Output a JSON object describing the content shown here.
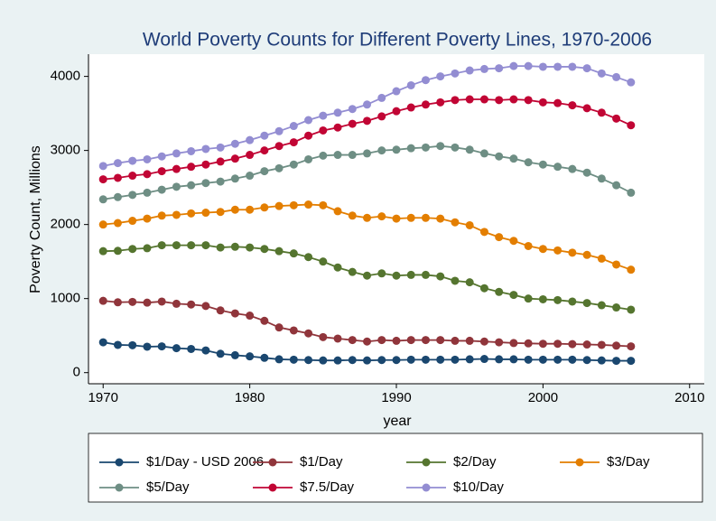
{
  "chart_data": {
    "type": "line",
    "title": "World Poverty Counts for Different Poverty Lines, 1970-2006",
    "x_label": "year",
    "y_label": "Poverty Count, Millions",
    "x": [
      1970,
      1971,
      1972,
      1973,
      1974,
      1975,
      1976,
      1977,
      1978,
      1979,
      1980,
      1981,
      1982,
      1983,
      1984,
      1985,
      1986,
      1987,
      1988,
      1989,
      1990,
      1991,
      1992,
      1993,
      1994,
      1995,
      1996,
      1997,
      1998,
      1999,
      2000,
      2001,
      2002,
      2003,
      2004,
      2005,
      2006
    ],
    "xlim": [
      1969,
      2011
    ],
    "xticks": [
      1970,
      1980,
      1990,
      2000,
      2010
    ],
    "ylim": [
      -150,
      4300
    ],
    "yticks": [
      0,
      1000,
      2000,
      3000,
      4000
    ],
    "grid": false,
    "legend_position": "bottom",
    "series": [
      {
        "name": "$1/Day - USD 2006",
        "color": "#1a476f",
        "values": [
          410,
          375,
          370,
          350,
          355,
          330,
          320,
          300,
          255,
          235,
          220,
          200,
          180,
          175,
          170,
          165,
          165,
          170,
          165,
          170,
          170,
          175,
          175,
          175,
          175,
          180,
          185,
          180,
          180,
          175,
          175,
          175,
          175,
          170,
          165,
          160,
          160
        ]
      },
      {
        "name": "$1/Day",
        "color": "#90353b",
        "values": [
          970,
          950,
          955,
          945,
          960,
          930,
          920,
          900,
          840,
          800,
          770,
          700,
          610,
          570,
          530,
          480,
          460,
          440,
          420,
          440,
          430,
          440,
          440,
          440,
          430,
          430,
          420,
          410,
          400,
          395,
          390,
          390,
          385,
          380,
          375,
          365,
          355
        ]
      },
      {
        "name": "$2/Day",
        "color": "#55752f",
        "values": [
          1640,
          1645,
          1670,
          1680,
          1720,
          1720,
          1720,
          1720,
          1690,
          1700,
          1690,
          1670,
          1640,
          1610,
          1560,
          1500,
          1420,
          1360,
          1310,
          1340,
          1310,
          1320,
          1320,
          1300,
          1240,
          1220,
          1140,
          1090,
          1050,
          1000,
          990,
          980,
          960,
          940,
          910,
          880,
          850
        ]
      },
      {
        "name": "$3/Day",
        "color": "#e37e00",
        "values": [
          2000,
          2020,
          2050,
          2080,
          2120,
          2130,
          2150,
          2160,
          2170,
          2200,
          2200,
          2230,
          2250,
          2260,
          2270,
          2260,
          2180,
          2120,
          2090,
          2110,
          2080,
          2090,
          2090,
          2080,
          2030,
          1990,
          1900,
          1830,
          1780,
          1710,
          1670,
          1650,
          1620,
          1590,
          1540,
          1460,
          1390
        ]
      },
      {
        "name": "$5/Day",
        "color": "#6e8e84",
        "values": [
          2340,
          2370,
          2400,
          2430,
          2470,
          2510,
          2530,
          2560,
          2580,
          2620,
          2660,
          2720,
          2760,
          2810,
          2880,
          2930,
          2940,
          2940,
          2960,
          3000,
          3010,
          3030,
          3040,
          3060,
          3040,
          3010,
          2960,
          2920,
          2890,
          2840,
          2810,
          2780,
          2750,
          2700,
          2620,
          2530,
          2430
        ]
      },
      {
        "name": "$7.5/Day",
        "color": "#c10534",
        "values": [
          2610,
          2630,
          2660,
          2680,
          2720,
          2750,
          2780,
          2810,
          2850,
          2890,
          2940,
          3000,
          3060,
          3110,
          3200,
          3270,
          3310,
          3360,
          3400,
          3460,
          3530,
          3580,
          3620,
          3650,
          3680,
          3690,
          3690,
          3680,
          3690,
          3680,
          3650,
          3640,
          3610,
          3570,
          3510,
          3430,
          3340
        ]
      },
      {
        "name": "$10/Day",
        "color": "#938dd2",
        "values": [
          2790,
          2830,
          2860,
          2880,
          2920,
          2960,
          2990,
          3020,
          3040,
          3090,
          3140,
          3200,
          3260,
          3330,
          3410,
          3470,
          3510,
          3560,
          3620,
          3710,
          3800,
          3880,
          3950,
          4000,
          4040,
          4080,
          4100,
          4110,
          4140,
          4140,
          4130,
          4130,
          4130,
          4110,
          4040,
          3990,
          3920
        ]
      }
    ]
  }
}
